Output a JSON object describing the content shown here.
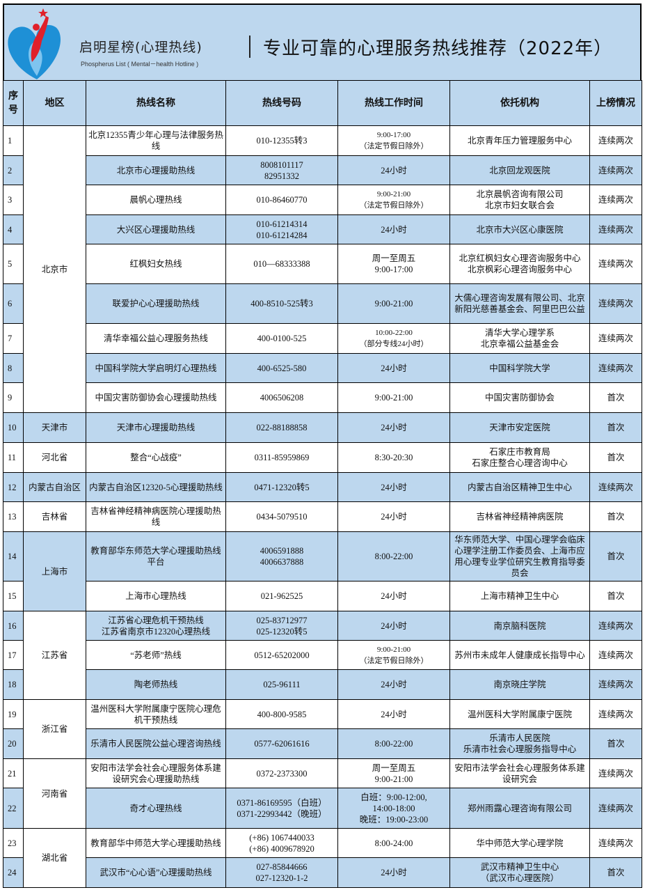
{
  "banner": {
    "brand": "启明星榜(心理热线)",
    "brand_en": "Phospherus List ( Mental－health Hotline )",
    "title": "专业可靠的心理服务热线推荐（2022年）",
    "logo_colors": {
      "blue": "#1e90d6",
      "red": "#e0202a"
    }
  },
  "headers": [
    "序\n号",
    "地区",
    "热线名称",
    "热线号码",
    "热线工作时间",
    "依托机构",
    "上榜情况"
  ],
  "colors": {
    "header_bg": "#bdd7ee",
    "stripe": "#bdd7ee"
  },
  "rows": [
    {
      "no": "1",
      "region": "北京市",
      "span": 9,
      "name": "北京12355青少年心理与法律服务热线",
      "phone": "010-12355转3",
      "time": "9:00-17:00\n（法定节假日除外）",
      "org": "北京青年压力管理服务中心",
      "status": "连续两次"
    },
    {
      "no": "2",
      "name": "北京市心理援助热线",
      "phone": "8008101117\n82951332",
      "time": "24小时",
      "org": "北京回龙观医院",
      "status": "连续两次"
    },
    {
      "no": "3",
      "name": "晨帆心理热线",
      "phone": "010-86460770",
      "time": "9:00-21:00\n（法定节假日除外）",
      "org": "北京晨帆咨询有限公司\n北京市妇女联合会",
      "status": "连续两次"
    },
    {
      "no": "4",
      "name": "大兴区心理援助热线",
      "phone": "010-61214314\n010-61214284",
      "time": "24小时",
      "org": "北京市大兴区心康医院",
      "status": "连续两次"
    },
    {
      "no": "5",
      "name": "红枫妇女热线",
      "phone": "010—68333388",
      "time": "周一至周五\n9:00-17:00",
      "org": "北京红枫妇女心理咨询服务中心\n北京枫彩心理咨询服务中心",
      "status": "连续两次"
    },
    {
      "no": "6",
      "name": "联爱护心心理援助热线",
      "phone": "400-8510-525转3",
      "time": "9:00-21:00",
      "org": "大儒心理咨询发展有限公司、北京新阳光慈善基金会、阿里巴巴公益",
      "status": "连续两次"
    },
    {
      "no": "7",
      "name": "清华幸福公益心理服务热线",
      "phone": "400-0100-525",
      "time": "10:00-22:00\n（部分专线24小时）",
      "org": "清华大学心理学系\n北京幸福公益基金会",
      "status": "连续两次"
    },
    {
      "no": "8",
      "name": "中国科学院大学启明灯心理热线",
      "phone": "400-6525-580",
      "time": "24小时",
      "org": "中国科学院大学",
      "status": "连续两次"
    },
    {
      "no": "9",
      "name": "中国灾害防御协会心理援助热线",
      "phone": "4006506208",
      "time": "9:00-21:00",
      "org": "中国灾害防御协会",
      "status": "首次"
    },
    {
      "no": "10",
      "region": "天津市",
      "span": 1,
      "name": "天津市心理援助热线",
      "phone": "022-88188858",
      "time": "24小时",
      "org": "天津市安定医院",
      "status": "首次"
    },
    {
      "no": "11",
      "region": "河北省",
      "span": 1,
      "name": "整合“心战疫”",
      "phone": "0311-85959869",
      "time": "8:30-20:30",
      "org": "石家庄市教育局\n石家庄整合心理咨询中心",
      "status": "首次"
    },
    {
      "no": "12",
      "region": "内蒙古自治区",
      "span": 1,
      "name": "内蒙古自治区12320-5心理援助热线",
      "phone": "0471-12320转5",
      "time": "24小时",
      "org": "内蒙古自治区精神卫生中心",
      "status": "连续两次"
    },
    {
      "no": "13",
      "region": "吉林省",
      "span": 1,
      "name": "吉林省神经精神病医院心理援助热线",
      "phone": "0434-5079510",
      "time": "24小时",
      "org": "吉林省神经精神病医院",
      "status": "首次"
    },
    {
      "no": "14",
      "region": "上海市",
      "span": 2,
      "name": "教育部华东师范大学心理援助热线平台",
      "phone": "4006591888\n4006637888",
      "time": "8:00-22:00",
      "org": "华东师范大学、中国心理学会临床心理学注册工作委员会、上海市应用心理专业学位研究生教育指导委员会",
      "status": "首次"
    },
    {
      "no": "15",
      "name": "上海市心理热线",
      "phone": "021-962525",
      "time": "24小时",
      "org": "上海市精神卫生中心",
      "status": "首次"
    },
    {
      "no": "16",
      "region": "江苏省",
      "span": 3,
      "name": "江苏省心理危机干预热线\n江苏省南京市12320心理热线",
      "phone": "025-83712977\n025-12320转5",
      "time": "24小时",
      "org": "南京脑科医院",
      "status": "连续两次"
    },
    {
      "no": "17",
      "name": "“苏老师”热线",
      "phone": "0512-65202000",
      "time": "9:00-21:00\n（法定节假日除外）",
      "org": "苏州市未成年人健康成长指导中心",
      "status": "连续两次"
    },
    {
      "no": "18",
      "name": "陶老师热线",
      "phone": "025-96111",
      "time": "24小时",
      "org": "南京晓庄学院",
      "status": "连续两次"
    },
    {
      "no": "19",
      "region": "浙江省",
      "span": 2,
      "name": "温州医科大学附属康宁医院心理危机干预热线",
      "phone": "400-800-9585",
      "time": "24小时",
      "org": "温州医科大学附属康宁医院",
      "status": "连续两次"
    },
    {
      "no": "20",
      "name": "乐清市人民医院公益心理咨询热线",
      "phone": "0577-62061616",
      "time": "8:00-22:00",
      "org": "乐清市人民医院\n乐清市社会心理服务指导中心",
      "status": "首次"
    },
    {
      "no": "21",
      "region": "河南省",
      "span": 2,
      "name": "安阳市法学会社会心理服务体系建设研究会心理援助热线",
      "phone": "0372-2373300",
      "time": "周一至周五\n9:00-21:00",
      "org": "安阳市法学会社会心理服务体系建设研究会",
      "status": "连续两次"
    },
    {
      "no": "22",
      "name": "奇才心理热线",
      "phone": "0371-86169595（白班）\n0371-22993442（晚班）",
      "time": "白班：9:00-12:00,\n14:00-18:00\n晚班：19:00-23:00",
      "org": "郑州雨露心理咨询有限公司",
      "status": "连续两次"
    },
    {
      "no": "23",
      "region": "湖北省",
      "span": 2,
      "name": "教育部华中师范大学心理援助热线",
      "phone": "(+86) 1067440033\n(+86) 4009678920",
      "time": "8:00-24:00",
      "org": "华中师范大学心理学院",
      "status": "连续两次"
    },
    {
      "no": "24",
      "name": "武汉市“心心语”心理援助热线",
      "phone": "027-85844666\n027-12320-1-2",
      "time": "24小时",
      "org": "武汉市精神卫生中心\n（武汉市心理医院）",
      "status": "首次"
    }
  ]
}
